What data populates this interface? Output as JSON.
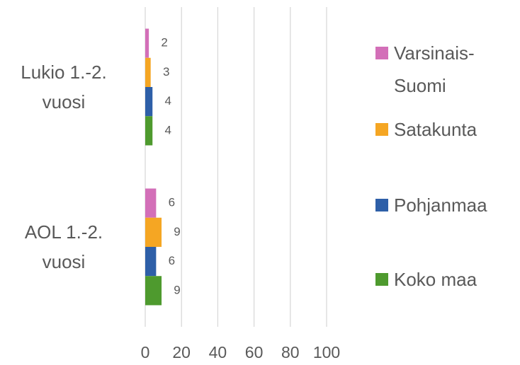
{
  "chart_data": {
    "type": "hbar",
    "categories": [
      "Lukio 1.-2. vuosi",
      "AOL 1.-2. vuosi"
    ],
    "series": [
      {
        "name": "Varsinais-Suomi",
        "color": "#d36fb8",
        "values": [
          2,
          6
        ]
      },
      {
        "name": "Satakunta",
        "color": "#f5a623",
        "values": [
          3,
          9
        ]
      },
      {
        "name": "Pohjanmaa",
        "color": "#2e5fa8",
        "values": [
          4,
          6
        ]
      },
      {
        "name": "Koko maa",
        "color": "#4e9a2e",
        "values": [
          4,
          9
        ]
      }
    ],
    "xlim": [
      0,
      100
    ],
    "xticks": [
      0,
      20,
      40,
      60,
      80,
      100
    ],
    "grid": true,
    "legend": "right"
  }
}
